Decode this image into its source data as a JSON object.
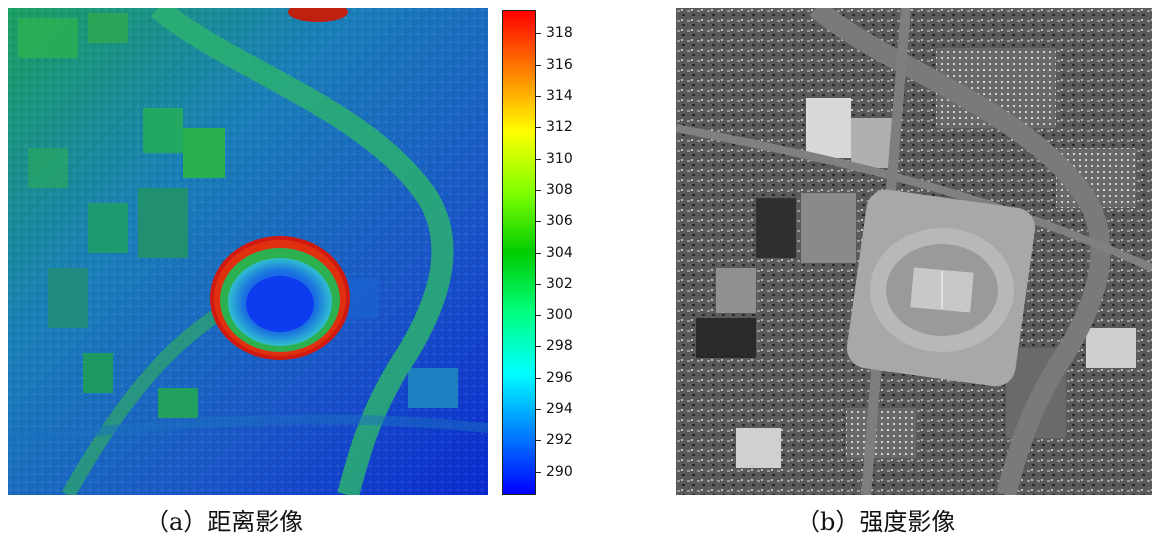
{
  "figure": {
    "panel_a": {
      "caption": "（a）距离影像",
      "colorbar": {
        "min": 288.5,
        "max": 319.5,
        "ticks": [
          "318",
          "316",
          "314",
          "312",
          "310",
          "308",
          "306",
          "304",
          "302",
          "300",
          "298",
          "296",
          "294",
          "292",
          "290"
        ],
        "colormap": [
          "#0000ff",
          "#0080ff",
          "#00ffff",
          "#00ff80",
          "#00cc00",
          "#80ff00",
          "#ffff00",
          "#ff8000",
          "#ff0000"
        ]
      }
    },
    "panel_b": {
      "caption": "（b）强度影像"
    }
  }
}
